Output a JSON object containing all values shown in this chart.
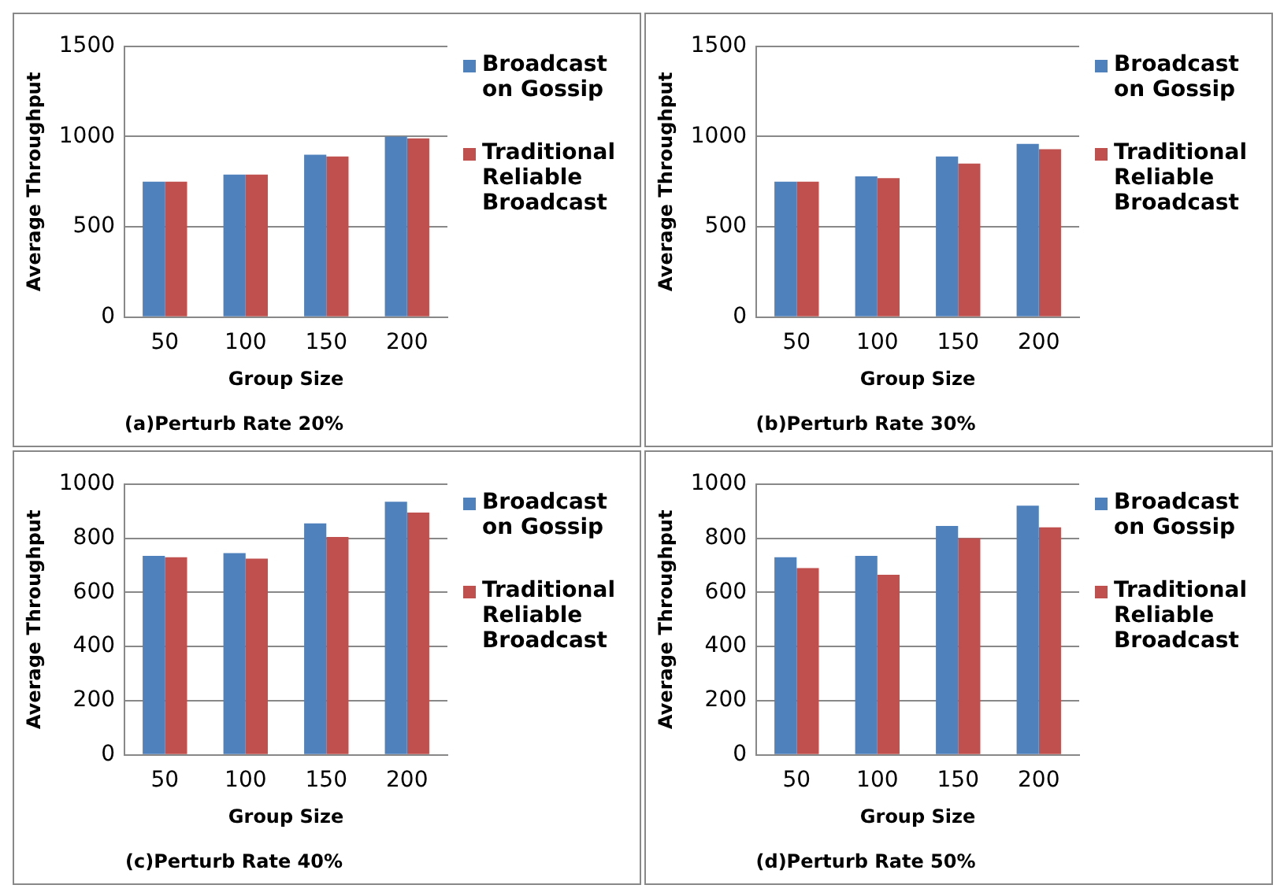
{
  "chart_data": [
    {
      "type": "bar",
      "title": "(a)Perturb Rate 20%",
      "xlabel": "Group Size",
      "ylabel": "Average Throughput",
      "categories": [
        "50",
        "100",
        "150",
        "200"
      ],
      "series": [
        {
          "name": "Broadcast on Gossip",
          "color": "#4f81bd",
          "values": [
            750,
            790,
            900,
            1000
          ]
        },
        {
          "name": "Traditional Reliable Broadcast",
          "color": "#c0504d",
          "values": [
            750,
            790,
            890,
            990
          ]
        }
      ],
      "ylim": [
        0,
        1500
      ],
      "yticks": [
        0,
        500,
        1000,
        1500
      ],
      "grid": "y",
      "legend": "right"
    },
    {
      "type": "bar",
      "title": "(b)Perturb Rate 30%",
      "xlabel": "Group Size",
      "ylabel": "Average Throughput",
      "categories": [
        "50",
        "100",
        "150",
        "200"
      ],
      "series": [
        {
          "name": "Broadcast on Gossip",
          "color": "#4f81bd",
          "values": [
            750,
            780,
            890,
            960
          ]
        },
        {
          "name": "Traditional Reliable Broadcast",
          "color": "#c0504d",
          "values": [
            750,
            770,
            850,
            930
          ]
        }
      ],
      "ylim": [
        0,
        1500
      ],
      "yticks": [
        0,
        500,
        1000,
        1500
      ],
      "grid": "y",
      "legend": "right"
    },
    {
      "type": "bar",
      "title": "(c)Perturb Rate 40%",
      "xlabel": "Group Size",
      "ylabel": "Average Throughput",
      "categories": [
        "50",
        "100",
        "150",
        "200"
      ],
      "series": [
        {
          "name": "Broadcast on Gossip",
          "color": "#4f81bd",
          "values": [
            735,
            745,
            855,
            935
          ]
        },
        {
          "name": "Traditional Reliable Broadcast",
          "color": "#c0504d",
          "values": [
            730,
            725,
            805,
            895
          ]
        }
      ],
      "ylim": [
        0,
        1000
      ],
      "yticks": [
        0,
        200,
        400,
        600,
        800,
        1000
      ],
      "grid": "y",
      "legend": "right"
    },
    {
      "type": "bar",
      "title": "(d)Perturb Rate 50%",
      "xlabel": "Group Size",
      "ylabel": "Average Throughput",
      "categories": [
        "50",
        "100",
        "150",
        "200"
      ],
      "series": [
        {
          "name": "Broadcast on Gossip",
          "color": "#4f81bd",
          "values": [
            730,
            735,
            845,
            920
          ]
        },
        {
          "name": "Traditional Reliable Broadcast",
          "color": "#c0504d",
          "values": [
            690,
            665,
            800,
            840
          ]
        }
      ],
      "ylim": [
        0,
        1000
      ],
      "yticks": [
        0,
        200,
        400,
        600,
        800,
        1000
      ],
      "grid": "y",
      "legend": "right"
    }
  ]
}
